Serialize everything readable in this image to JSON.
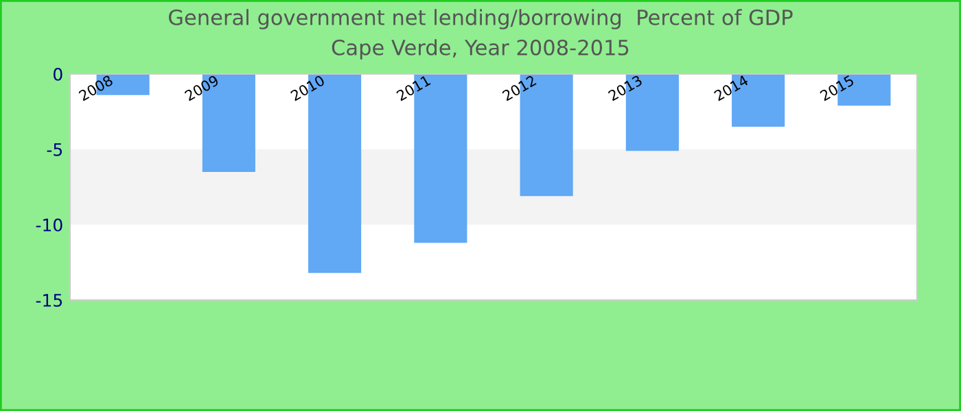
{
  "chart_data": {
    "type": "bar",
    "title": "General government net lending/borrowing  Percent of GDP",
    "subtitle": "Cape Verde, Year 2008-2015",
    "categories": [
      "2008",
      "2009",
      "2010",
      "2011",
      "2012",
      "2013",
      "2014",
      "2015"
    ],
    "values": [
      -1.4,
      -6.5,
      -13.2,
      -11.2,
      -8.1,
      -5.1,
      -3.5,
      -2.1
    ],
    "color": "#61a8f5",
    "ylim": [
      -15,
      0
    ],
    "yticks": [
      -15,
      -10,
      -5,
      0
    ],
    "bands": [
      {
        "axis": "y",
        "from": -10,
        "to": -5,
        "color": "#f3f3f3"
      }
    ],
    "grid": false,
    "legend": false
  }
}
